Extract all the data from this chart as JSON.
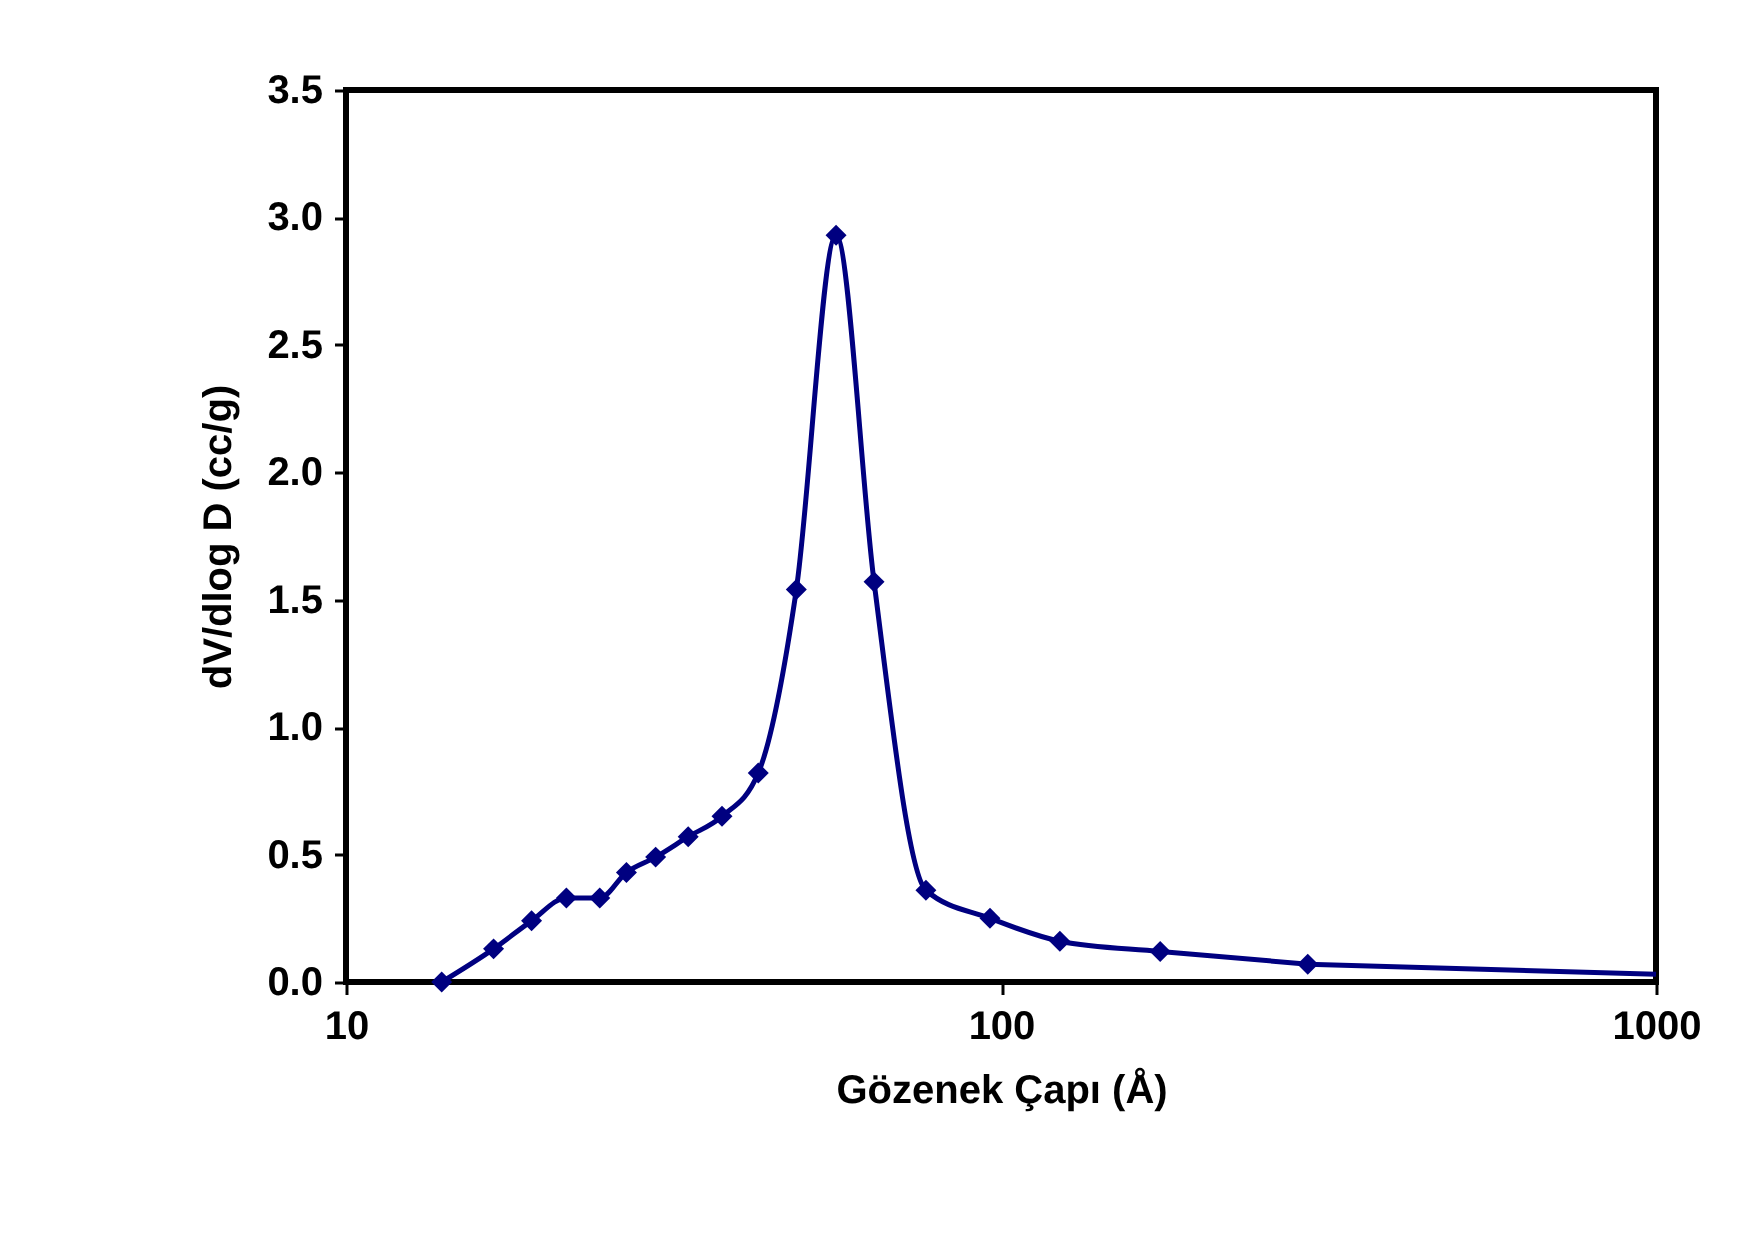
{
  "chart_data": {
    "type": "line",
    "xlabel": "Gözenek Çapı (Å)",
    "ylabel": "dV/dlog D (cc/g)",
    "log": "x",
    "grid": false,
    "line_style": "solid",
    "xlim": [
      10,
      1000
    ],
    "xticks": [
      10,
      100,
      1000
    ],
    "ylim": [
      0,
      3.5
    ],
    "yticks": [
      {
        "value": 0,
        "label": "0.0"
      },
      0.5,
      {
        "value": 1,
        "label": "1.0"
      },
      1.5,
      {
        "value": 2,
        "label": "2.0"
      },
      2.5,
      {
        "value": 3,
        "label": "3.0"
      },
      3.5
    ],
    "series": [
      {
        "color": "#000080",
        "marker": "diamond",
        "x": [
          14.0,
          16.8,
          19.2,
          21.7,
          24.4,
          26.8,
          29.7,
          33.3,
          37.5,
          42.6,
          48.7,
          56.0,
          64.0,
          76.8,
          96.2,
          123,
          175,
          294
        ],
        "values": [
          0,
          0.13,
          0.24,
          0.33,
          0.33,
          0.43,
          0.49,
          0.57,
          0.65,
          0.82,
          1.54,
          2.93,
          1.57,
          0.36,
          0.25,
          0.16,
          0.12,
          0.07
        ]
      },
      {
        "color": "#000080",
        "marker": "none",
        "x": [
          294,
          1000
        ],
        "values": [
          0.07,
          0.03
        ]
      }
    ]
  }
}
